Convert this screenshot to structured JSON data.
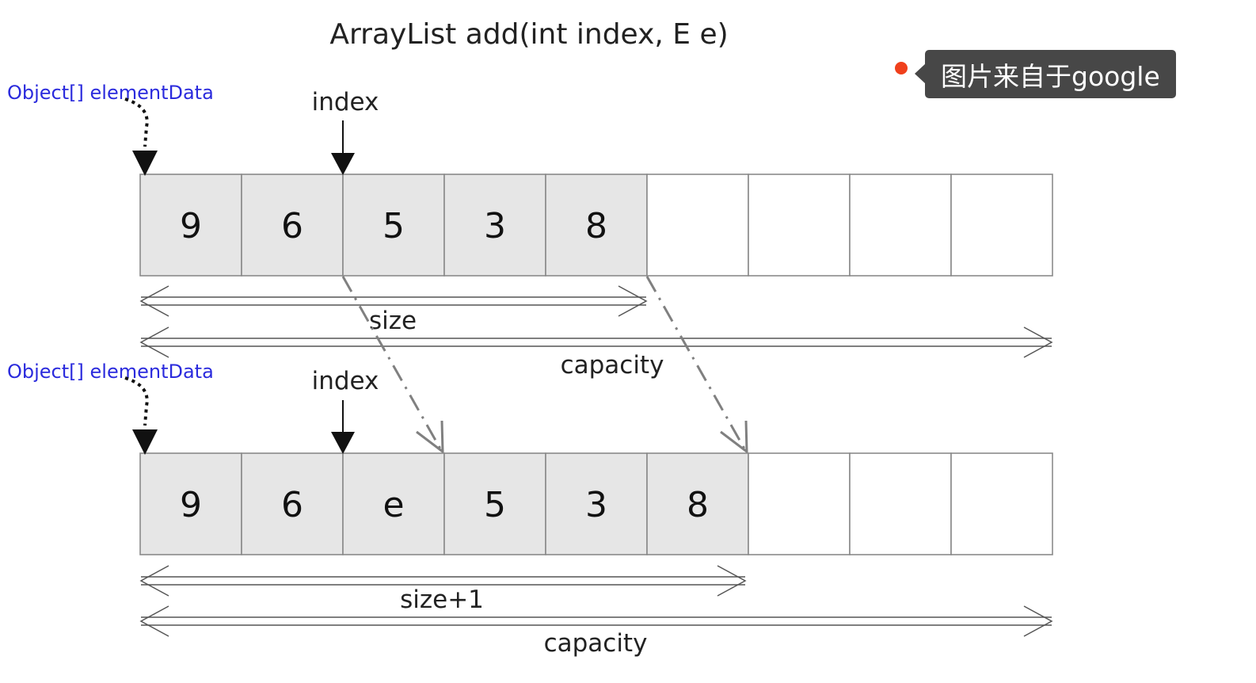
{
  "title": "ArrayList add(int index, E e)",
  "pointer_label": "Object[] elementData",
  "index_label": "index",
  "before": {
    "cells": [
      "9",
      "6",
      "5",
      "3",
      "8",
      "",
      "",
      "",
      ""
    ],
    "filled_count": 5,
    "size_label": "size",
    "capacity_label": "capacity"
  },
  "after": {
    "cells": [
      "9",
      "6",
      "e",
      "5",
      "3",
      "8",
      "",
      "",
      ""
    ],
    "filled_count": 6,
    "inserted_index": 2,
    "size_label": "size+1",
    "capacity_label": "capacity"
  },
  "badge": {
    "text": "图片来自于google"
  },
  "colors": {
    "filled_cell": "#e6e6e6",
    "empty_cell": "#ffffff",
    "cell_border": "#8a8a8a",
    "pointer_text": "#2b2bdd",
    "highlight": "#33ee33",
    "shift_arrow": "#808080",
    "badge_bg": "#474747",
    "badge_dot": "#f0401c"
  }
}
